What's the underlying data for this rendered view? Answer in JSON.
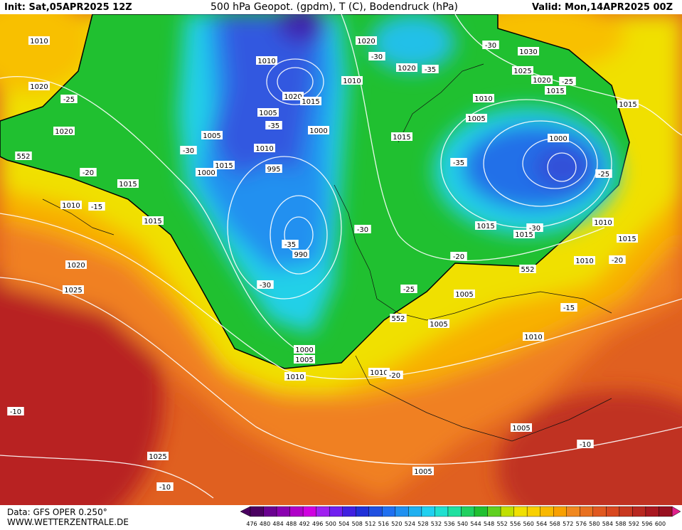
{
  "header": {
    "init": "Init: Sat,05APR2025 12Z",
    "title": "500 hPa Geopot. (gpdm), T (C), Bodendruck (hPa)",
    "valid": "Valid: Mon,14APR2025 00Z"
  },
  "map": {
    "labels": [
      "1010",
      "1020",
      "1020",
      "1015",
      "1010",
      "1015",
      "1020",
      "1025",
      "1010",
      "1020",
      "1015",
      "1005",
      "1005",
      "1010",
      "1015",
      "1000",
      "995",
      "1000",
      "990",
      "1000",
      "1005",
      "1010",
      "1020",
      "1020",
      "1010",
      "1015",
      "1010",
      "1005",
      "1000",
      "1030",
      "1025",
      "1020",
      "1015",
      "1015",
      "1010",
      "1015",
      "1015",
      "1010",
      "1015",
      "1005",
      "1005",
      "1010",
      "1010",
      "1005",
      "1005",
      "1025",
      "-30",
      "-35",
      "-30",
      "-25",
      "-25",
      "-20",
      "-15",
      "-30",
      "-35",
      "-35",
      "-25",
      "-30",
      "-35",
      "-30",
      "-25",
      "-20",
      "-30",
      "-20",
      "-15",
      "-20",
      "-10",
      "-10",
      "-10",
      "552",
      "552",
      "552"
    ]
  },
  "footer": {
    "source": "Data: GFS OPER 0.250°",
    "site": "WWW.WETTERZENTRALE.DE"
  },
  "colorbar": {
    "labels": [
      476,
      480,
      484,
      488,
      492,
      496,
      500,
      504,
      508,
      512,
      516,
      520,
      524,
      528,
      532,
      536,
      540,
      544,
      548,
      552,
      556,
      560,
      564,
      568,
      572,
      576,
      580,
      584,
      588,
      592,
      596,
      600
    ],
    "colors": [
      "#4a0060",
      "#6a0090",
      "#8a00b0",
      "#b000c8",
      "#d000e0",
      "#a020f0",
      "#7020f0",
      "#4020e0",
      "#2030d8",
      "#2050e0",
      "#2070f0",
      "#2090f0",
      "#20b0f0",
      "#20d0f0",
      "#20e0d0",
      "#20e0a0",
      "#20d060",
      "#20c030",
      "#60d020",
      "#c0e000",
      "#f0e000",
      "#f8d000",
      "#f8b800",
      "#f8a000",
      "#f08820",
      "#e87020",
      "#e05820",
      "#d84820",
      "#c83820",
      "#b82820",
      "#a81820",
      "#981020"
    ]
  }
}
